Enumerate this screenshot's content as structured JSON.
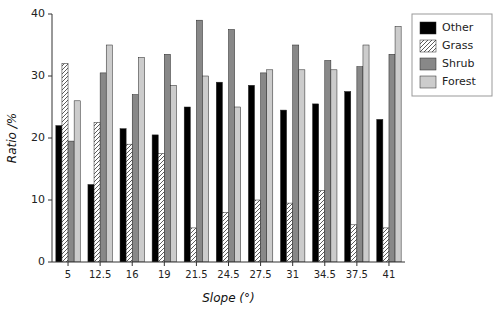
{
  "chart_data": {
    "type": "bar",
    "categories": [
      "5",
      "12.5",
      "16",
      "19",
      "21.5",
      "24.5",
      "27.5",
      "31",
      "34.5",
      "37.5",
      "41"
    ],
    "series": [
      {
        "name": "Other",
        "color": "#000000",
        "values": [
          22,
          12.5,
          21.5,
          20.5,
          25,
          29,
          28.5,
          24.5,
          25.5,
          27.5,
          23
        ]
      },
      {
        "name": "Grass",
        "color": "#ffffff",
        "values": [
          32,
          22.5,
          19,
          17.5,
          5.5,
          8,
          10,
          9.5,
          11.5,
          6,
          5.5
        ]
      },
      {
        "name": "Shrub",
        "color": "#888888",
        "values": [
          19.5,
          30.5,
          27,
          33.5,
          39,
          37.5,
          30.5,
          35,
          32.5,
          31.5,
          33.5
        ]
      },
      {
        "name": "Forest",
        "color": "#cccccc",
        "values": [
          26,
          35,
          33,
          28.5,
          30,
          25,
          31,
          31,
          31,
          35,
          38
        ]
      }
    ],
    "xlabel": "Slope (°)",
    "ylabel": "Ratio /%",
    "ylim": [
      0,
      40
    ],
    "yticks": [
      0,
      10,
      20,
      30,
      40
    ],
    "grid": false,
    "legend": "upper right"
  }
}
